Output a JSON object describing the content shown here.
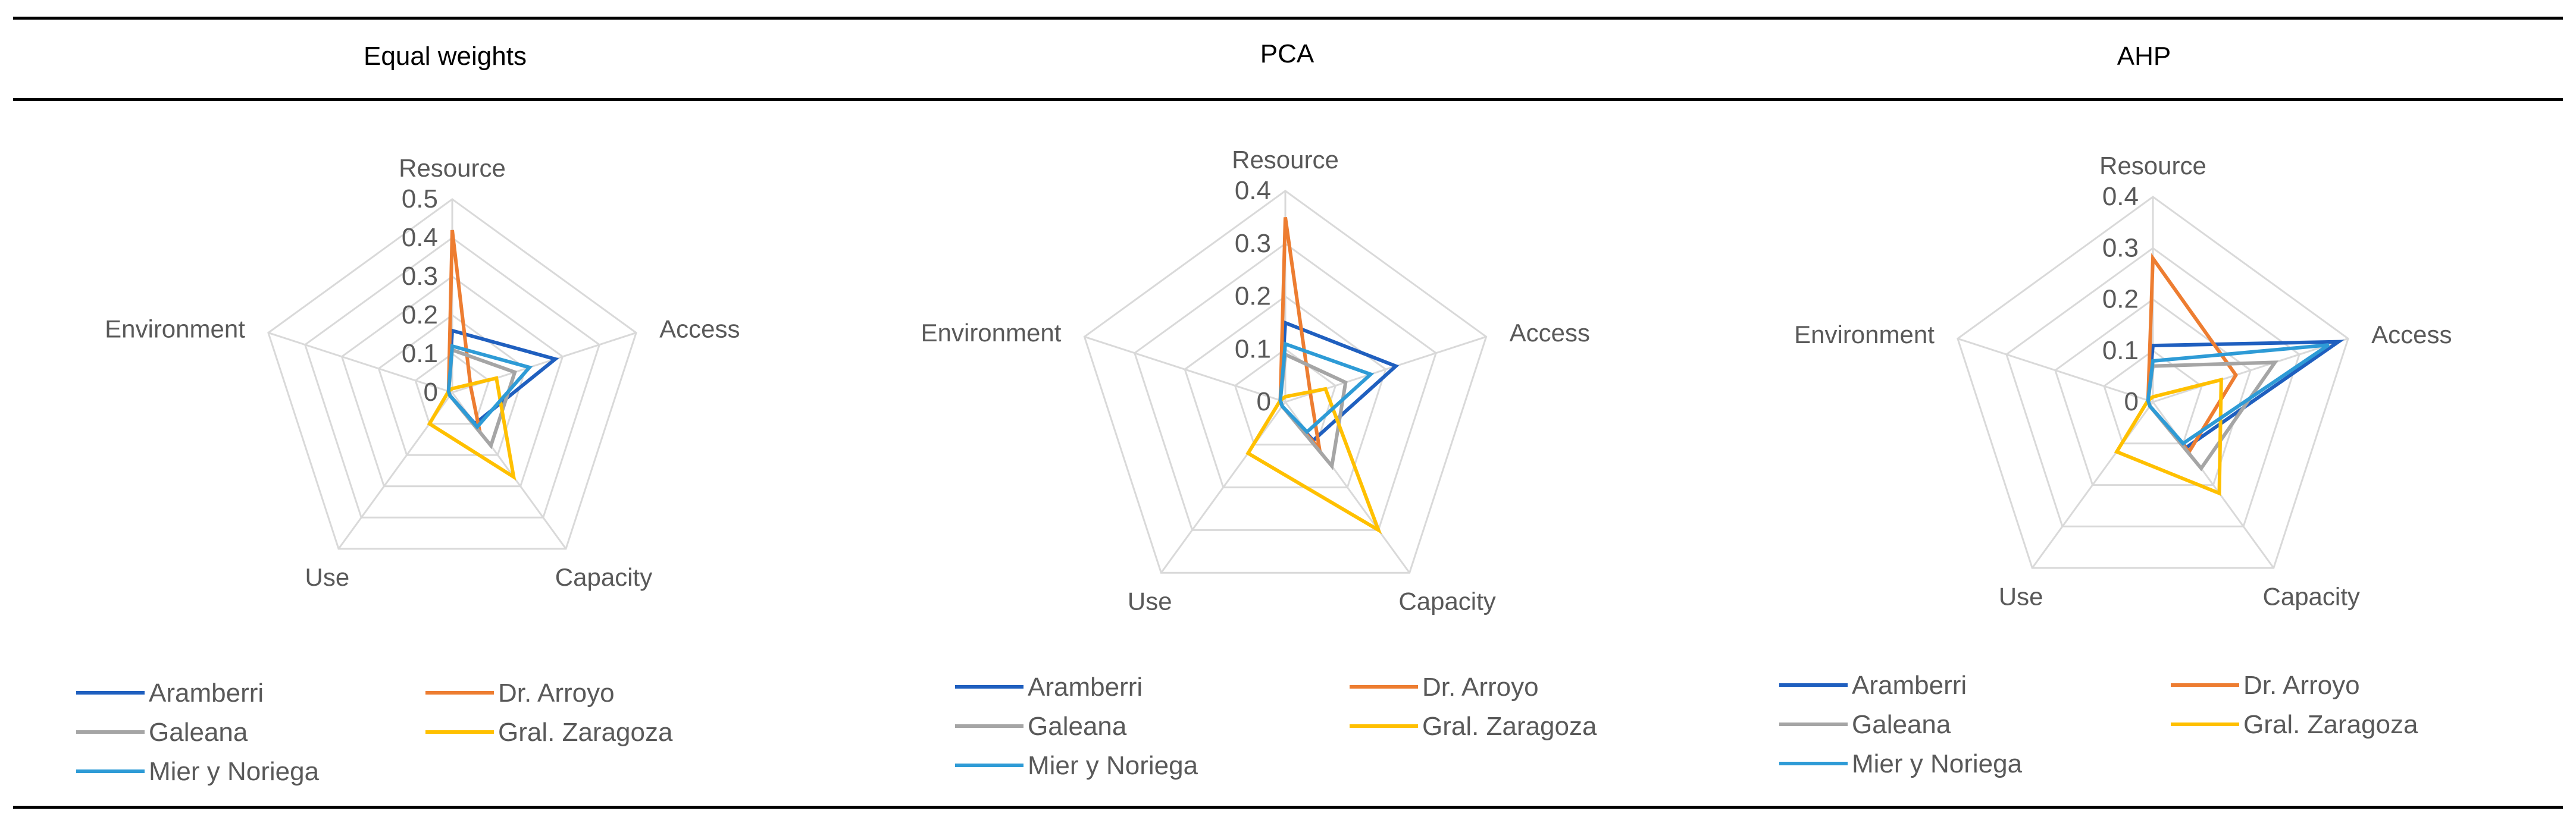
{
  "table": {
    "headers": [
      "Equal weights",
      "PCA",
      "AHP"
    ]
  },
  "chart_data": [
    {
      "type": "radar",
      "title": "Equal weights",
      "categories": [
        "Resource",
        "Access",
        "Capacity",
        "Use",
        "Environment"
      ],
      "ticks": [
        "0",
        "0.1",
        "0.2",
        "0.3",
        "0.4",
        "0.5"
      ],
      "rmax": 0.5,
      "series": [
        {
          "name": "Aramberri",
          "color": "#1f5fbf",
          "values": [
            0.16,
            0.28,
            0.1,
            0.01,
            0.01
          ]
        },
        {
          "name": "Dr. Arroyo",
          "color": "#ed7d31",
          "values": [
            0.42,
            0.05,
            0.12,
            0.01,
            0.01
          ]
        },
        {
          "name": "Galeana",
          "color": "#a5a5a5",
          "values": [
            0.11,
            0.17,
            0.17,
            0.01,
            0.01
          ]
        },
        {
          "name": "Gral. Zaragoza",
          "color": "#ffc000",
          "values": [
            0.01,
            0.12,
            0.27,
            0.1,
            0.01
          ]
        },
        {
          "name": "Mier y Noriega",
          "color": "#2e9bd6",
          "values": [
            0.12,
            0.21,
            0.11,
            0.01,
            0.01
          ]
        }
      ],
      "legend": "bottom"
    },
    {
      "type": "radar",
      "title": "PCA",
      "categories": [
        "Resource",
        "Access",
        "Capacity",
        "Use",
        "Environment"
      ],
      "ticks": [
        "0",
        "0.1",
        "0.2",
        "0.3",
        "0.4"
      ],
      "rmax": 0.4,
      "series": [
        {
          "name": "Aramberri",
          "color": "#1f5fbf",
          "values": [
            0.15,
            0.22,
            0.09,
            0.01,
            0.01
          ]
        },
        {
          "name": "Dr. Arroyo",
          "color": "#ed7d31",
          "values": [
            0.35,
            0.05,
            0.11,
            0.01,
            0.01
          ]
        },
        {
          "name": "Galeana",
          "color": "#a5a5a5",
          "values": [
            0.09,
            0.12,
            0.15,
            0.01,
            0.01
          ]
        },
        {
          "name": "Gral. Zaragoza",
          "color": "#ffc000",
          "values": [
            0.01,
            0.08,
            0.3,
            0.12,
            0.01
          ]
        },
        {
          "name": "Mier y Noriega",
          "color": "#2e9bd6",
          "values": [
            0.11,
            0.17,
            0.07,
            0.01,
            0.01
          ]
        }
      ],
      "legend": "bottom"
    },
    {
      "type": "radar",
      "title": "AHP",
      "categories": [
        "Resource",
        "Access",
        "Capacity",
        "Use",
        "Environment"
      ],
      "ticks": [
        "0",
        "0.1",
        "0.2",
        "0.3",
        "0.4"
      ],
      "rmax": 0.4,
      "series": [
        {
          "name": "Aramberri",
          "color": "#1f5fbf",
          "values": [
            0.11,
            0.38,
            0.11,
            0.01,
            0.01
          ]
        },
        {
          "name": "Dr. Arroyo",
          "color": "#ed7d31",
          "values": [
            0.28,
            0.17,
            0.12,
            0.01,
            0.01
          ]
        },
        {
          "name": "Galeana",
          "color": "#a5a5a5",
          "values": [
            0.07,
            0.25,
            0.16,
            0.01,
            0.01
          ]
        },
        {
          "name": "Gral. Zaragoza",
          "color": "#ffc000",
          "values": [
            0.01,
            0.14,
            0.22,
            0.12,
            0.01
          ]
        },
        {
          "name": "Mier y Noriega",
          "color": "#2e9bd6",
          "values": [
            0.08,
            0.36,
            0.1,
            0.01,
            0.01
          ]
        }
      ],
      "legend": "bottom"
    }
  ]
}
